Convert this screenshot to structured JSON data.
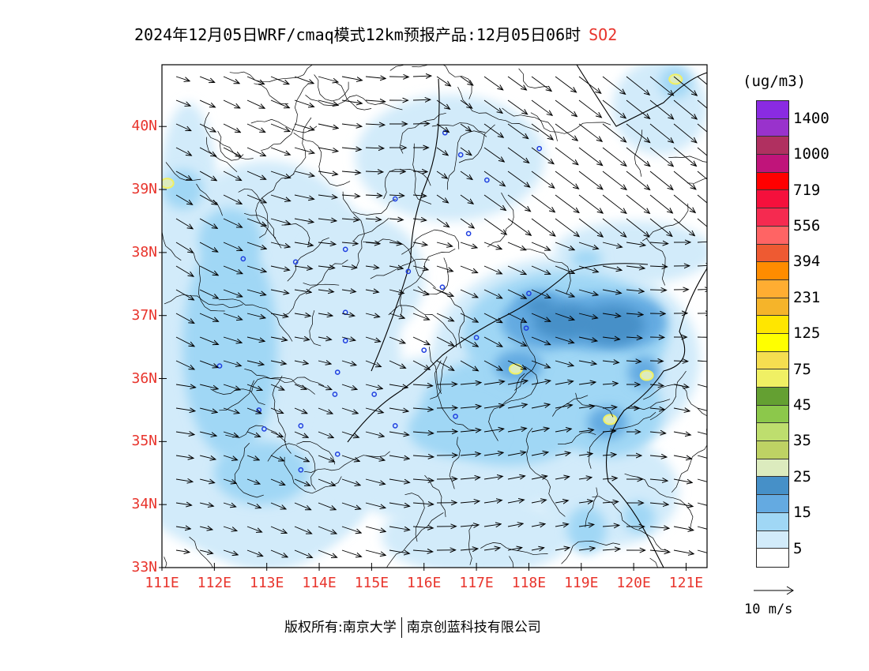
{
  "header": {
    "title": "2024年12月05日WRF/cmaq模式12km预报产品:12月05日06时",
    "species": "SO2"
  },
  "axes": {
    "lat_labels": [
      "40N",
      "39N",
      "38N",
      "37N",
      "36N",
      "35N",
      "34N",
      "33N"
    ],
    "lat_values": [
      40,
      39,
      38,
      37,
      36,
      35,
      34,
      33
    ],
    "lon_labels": [
      "111E",
      "112E",
      "113E",
      "114E",
      "115E",
      "116E",
      "117E",
      "118E",
      "119E",
      "120E",
      "121E"
    ],
    "lon_values": [
      111,
      112,
      113,
      114,
      115,
      116,
      117,
      118,
      119,
      120,
      121
    ],
    "lat_range": [
      33,
      40.98
    ],
    "lon_range": [
      111,
      121.4
    ]
  },
  "legend": {
    "unit": "(ug/m3)",
    "labels": [
      "1400",
      "1000",
      "719",
      "556",
      "394",
      "231",
      "125",
      "75",
      "45",
      "35",
      "25",
      "15",
      "5"
    ],
    "colors_top_to_bottom": [
      "#8a2be2",
      "#9932cc",
      "#b03060",
      "#c0147a",
      "#ff0000",
      "#f5103c",
      "#f52a50",
      "#ff6464",
      "#ee5a32",
      "#ff8c00",
      "#ffad32",
      "#f5b42a",
      "#ffe600",
      "#ffff00",
      "#f5de50",
      "#f0f064",
      "#64a032",
      "#8cc84b",
      "#bede6e",
      "#bed264",
      "#dcebbe",
      "#4690c8",
      "#64aae1",
      "#a0d7f5",
      "#d2ebfa",
      "#ffffff"
    ]
  },
  "wind_key": {
    "label": "10 m/s"
  },
  "footer": {
    "left": "版权所有:南京大学",
    "right": "南京创蓝科技有限公司"
  },
  "map_data": {
    "field": "SO2 concentration",
    "high_regions": [
      {
        "lon": 118.3,
        "lat": 36.9,
        "level": "15-25",
        "desc": "Shandong central"
      },
      {
        "lon": 119.2,
        "lat": 36.9,
        "level": "15-25",
        "desc": "Shandong central-east"
      },
      {
        "lon": 119.8,
        "lat": 36.9,
        "level": "15-25",
        "desc": "Shandong east"
      },
      {
        "lon": 117.75,
        "lat": 36.15,
        "level": "25-35",
        "desc": "Laiwu hotspot"
      },
      {
        "lon": 120.25,
        "lat": 36.05,
        "level": "25-35",
        "desc": "Qingdao hotspot"
      },
      {
        "lon": 119.55,
        "lat": 35.35,
        "level": "25-35",
        "desc": "Rizhao hotspot"
      },
      {
        "lon": 111.1,
        "lat": 39.1,
        "level": "25-35",
        "desc": "West edge hotspot"
      },
      {
        "lon": 120.8,
        "lat": 40.75,
        "level": "25-35",
        "desc": "Northeast hotspot"
      }
    ],
    "cities": [
      {
        "lon": 116.4,
        "lat": 39.9
      },
      {
        "lon": 117.2,
        "lat": 39.15
      },
      {
        "lon": 116.7,
        "lat": 39.55
      },
      {
        "lon": 118.2,
        "lat": 39.65
      },
      {
        "lon": 115.45,
        "lat": 38.85
      },
      {
        "lon": 116.85,
        "lat": 38.3
      },
      {
        "lon": 114.5,
        "lat": 38.05
      },
      {
        "lon": 115.7,
        "lat": 37.7
      },
      {
        "lon": 116.35,
        "lat": 37.45
      },
      {
        "lon": 112.55,
        "lat": 37.9
      },
      {
        "lon": 113.55,
        "lat": 37.85
      },
      {
        "lon": 114.5,
        "lat": 37.05
      },
      {
        "lon": 114.5,
        "lat": 36.6
      },
      {
        "lon": 117.0,
        "lat": 36.65
      },
      {
        "lon": 118.0,
        "lat": 37.35
      },
      {
        "lon": 117.95,
        "lat": 36.8
      },
      {
        "lon": 116.0,
        "lat": 36.45
      },
      {
        "lon": 112.1,
        "lat": 36.2
      },
      {
        "lon": 114.35,
        "lat": 36.1
      },
      {
        "lon": 114.3,
        "lat": 35.75
      },
      {
        "lon": 115.05,
        "lat": 35.75
      },
      {
        "lon": 112.85,
        "lat": 35.5
      },
      {
        "lon": 113.65,
        "lat": 35.25
      },
      {
        "lon": 112.95,
        "lat": 35.2
      },
      {
        "lon": 115.45,
        "lat": 35.25
      },
      {
        "lon": 116.6,
        "lat": 35.4
      },
      {
        "lon": 114.35,
        "lat": 34.8
      },
      {
        "lon": 113.65,
        "lat": 34.55
      }
    ]
  }
}
